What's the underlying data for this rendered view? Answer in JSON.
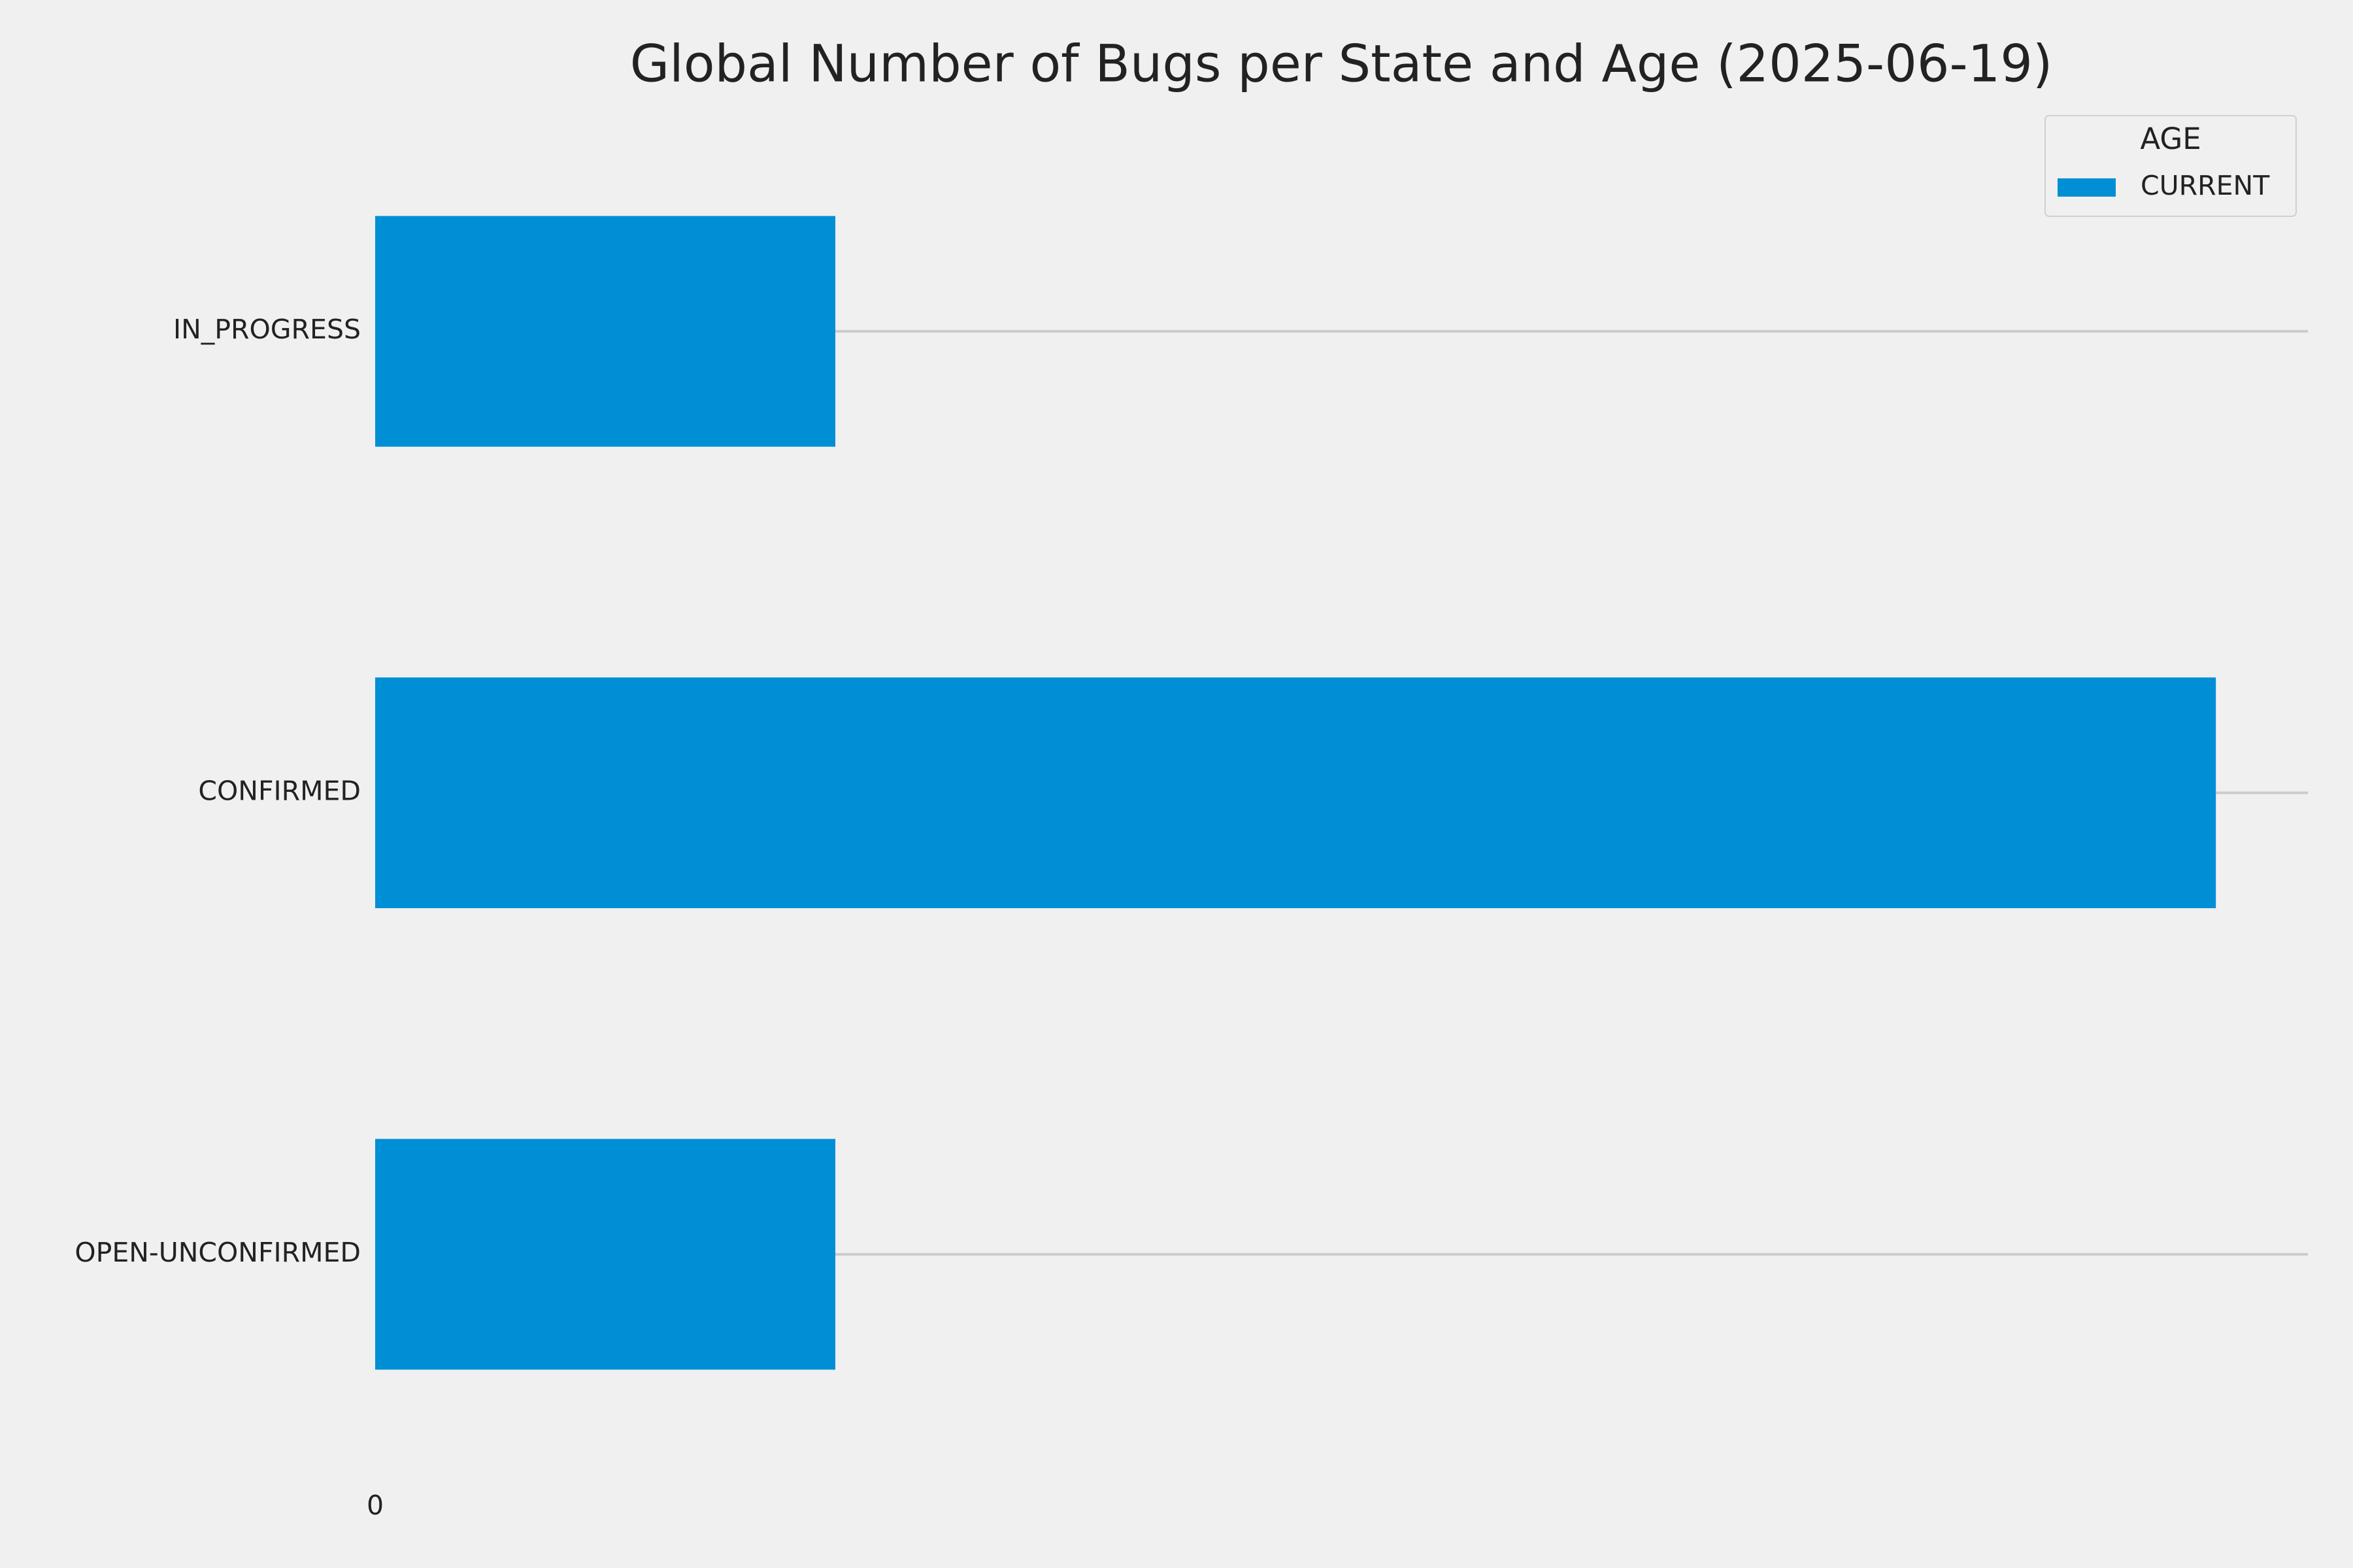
{
  "chart_data": {
    "type": "barh",
    "title": "Global Number of Bugs per State and Age (2025-06-19)",
    "categories": [
      "IN_PROGRESS",
      "CONFIRMED",
      "OPEN-UNCONFIRMED"
    ],
    "series": [
      {
        "name": "CURRENT",
        "color": "#008fd5",
        "values": [
          1,
          4,
          1
        ]
      }
    ],
    "xlim": [
      0,
      4.2
    ],
    "xticks": [
      0
    ],
    "legend_title": "AGE",
    "legend": "upper right",
    "grid": "y"
  }
}
